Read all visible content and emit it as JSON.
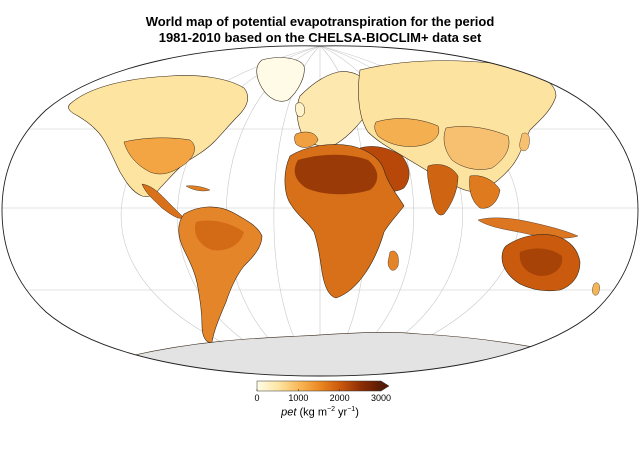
{
  "title": {
    "line1": "World map of potential evapotranspiration for the period",
    "line2": "1981-2010 based on the CHELSA-BIOCLIM+ data set"
  },
  "legend": {
    "var": "pet",
    "unit_open": " (kg m",
    "exp1": "−2",
    "unit_mid": " yr",
    "exp2": "−1",
    "unit_close": ")",
    "min": 0,
    "max": 3000,
    "ticks": [
      "0",
      "1000",
      "2000",
      "3000"
    ],
    "colors": [
      "#fffbe6",
      "#fde7a6",
      "#f9b95a",
      "#ec8a24",
      "#cc5a0c",
      "#8f2f05",
      "#5a1a02"
    ]
  },
  "colors": {
    "ocean": "#ffffff",
    "antarctica": "#e3e3e3",
    "graticule": "#c8c8c8",
    "border": "#3a2a1a"
  }
}
